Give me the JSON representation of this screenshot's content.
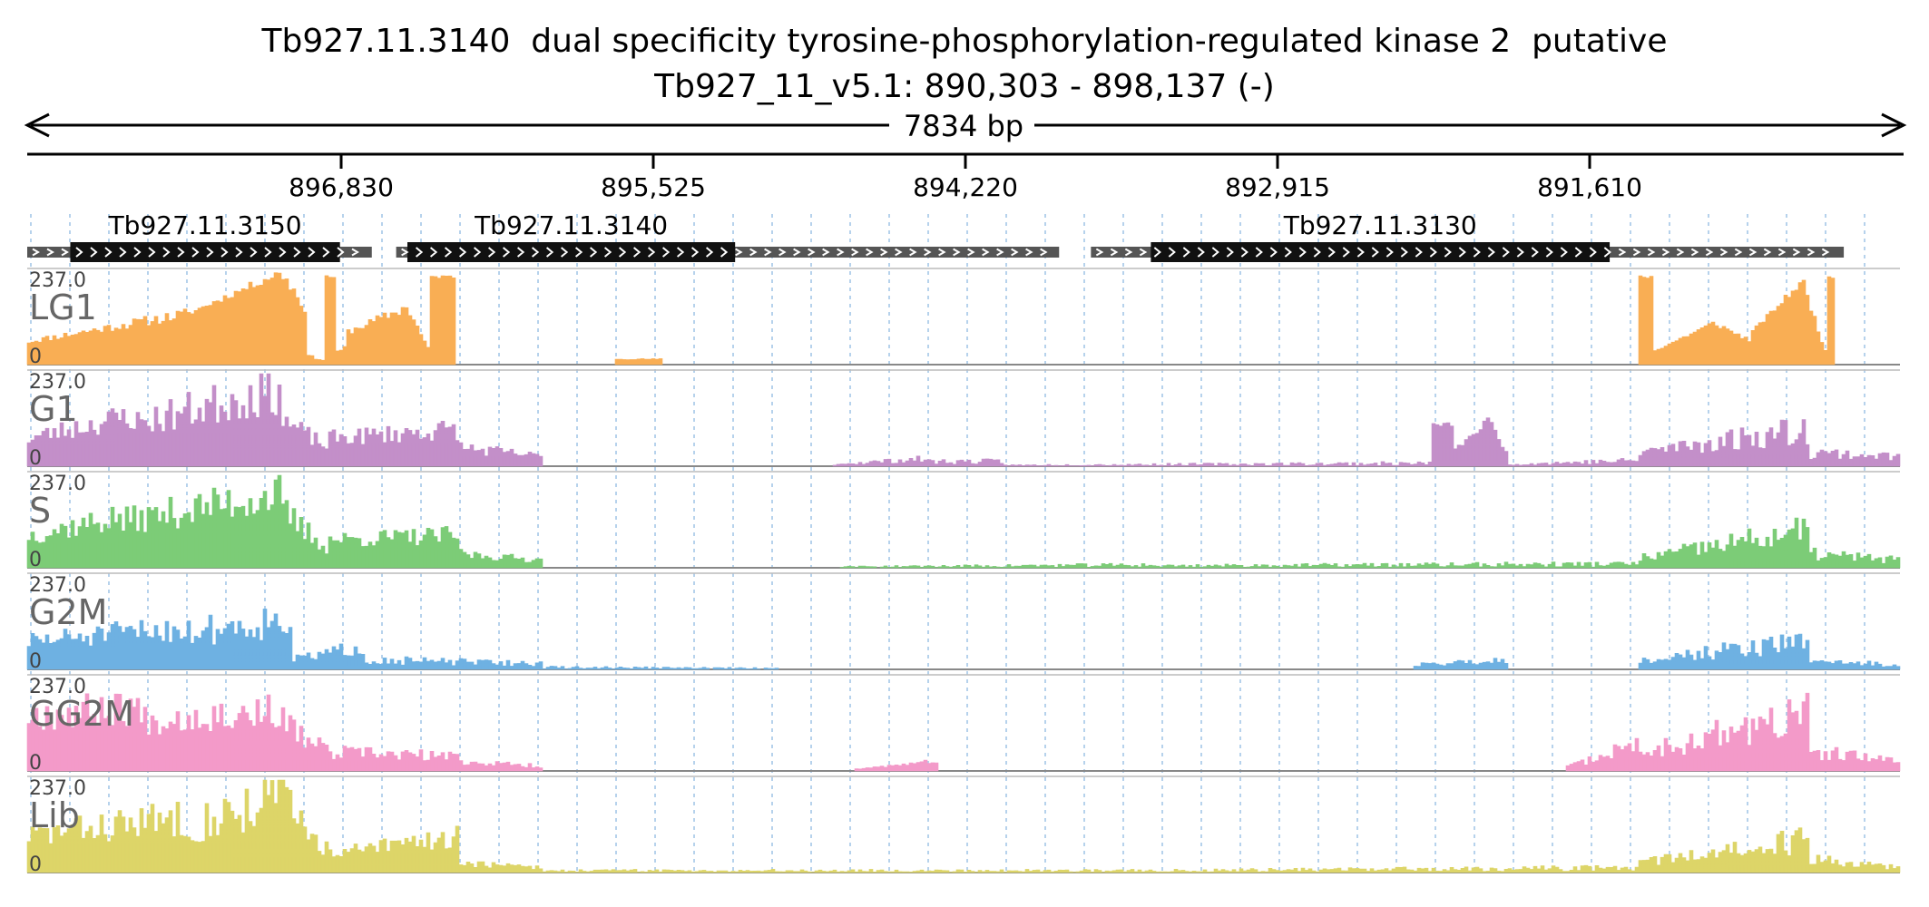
{
  "title_line1": "Tb927.11.3140  dual specificity tyrosine-phosphorylation-regulated kinase 2  putative",
  "title_line2": "Tb927_11_v5.1: 890,303 - 898,137 (-)",
  "span_label": "7834 bp",
  "ticks": [
    "896,830",
    "895,525",
    "894,220",
    "892,915",
    "891,610"
  ],
  "genes": [
    {
      "name": "Tb927.11.3150",
      "utr_start": 0,
      "cds_start": 0.023,
      "cds_end": 0.167,
      "utr_end": 0.184
    },
    {
      "name": "Tb927.11.3140",
      "utr_start": 0.197,
      "cds_start": 0.203,
      "cds_end": 0.378,
      "utr_end": 0.551
    },
    {
      "name": "Tb927.11.3130",
      "utr_start": 0.568,
      "cds_start": 0.6,
      "cds_end": 0.845,
      "utr_end": 0.97
    }
  ],
  "tracks": [
    {
      "name": "LG1",
      "max": "237.0",
      "min": "0",
      "color": "#f9ae54",
      "seed": 11,
      "profile": [
        {
          "s": 0,
          "e": 0.085,
          "a": 0.25,
          "b": 0.55,
          "n": 0.12
        },
        {
          "s": 0.085,
          "e": 0.135,
          "a": 0.55,
          "b": 1.0,
          "n": 0.05
        },
        {
          "s": 0.135,
          "e": 0.148,
          "a": 1.0,
          "b": 0.6,
          "n": 0.1
        },
        {
          "s": 0.148,
          "e": 0.157,
          "a": 0.1,
          "b": 0.05,
          "n": 0.2
        },
        {
          "s": 0.157,
          "e": 0.163,
          "a": 0.95,
          "b": 0.95,
          "n": 0.02
        },
        {
          "s": 0.163,
          "e": 0.17,
          "a": 0.1,
          "b": 0.2,
          "n": 0.2
        },
        {
          "s": 0.17,
          "e": 0.2,
          "a": 0.35,
          "b": 0.6,
          "n": 0.1
        },
        {
          "s": 0.2,
          "e": 0.215,
          "a": 0.7,
          "b": 0.1,
          "n": 0.1
        },
        {
          "s": 0.215,
          "e": 0.228,
          "a": 0.95,
          "b": 0.95,
          "n": 0.02
        },
        {
          "s": 0.313,
          "e": 0.338,
          "a": 0.06,
          "b": 0.06,
          "n": 0.1
        },
        {
          "s": 0.86,
          "e": 0.868,
          "a": 0.95,
          "b": 0.95,
          "n": 0.02
        },
        {
          "s": 0.868,
          "e": 0.9,
          "a": 0.15,
          "b": 0.45,
          "n": 0.08
        },
        {
          "s": 0.9,
          "e": 0.92,
          "a": 0.45,
          "b": 0.25,
          "n": 0.08
        },
        {
          "s": 0.92,
          "e": 0.947,
          "a": 0.35,
          "b": 0.9,
          "n": 0.05
        },
        {
          "s": 0.947,
          "e": 0.96,
          "a": 0.9,
          "b": 0.1,
          "n": 0.08
        },
        {
          "s": 0.96,
          "e": 0.965,
          "a": 0.95,
          "b": 0.95,
          "n": 0.02
        }
      ]
    },
    {
      "name": "G1",
      "max": "237.0",
      "min": "0",
      "color": "#c38fc9",
      "seed": 23,
      "profile": [
        {
          "s": 0,
          "e": 0.055,
          "a": 0.3,
          "b": 0.55,
          "n": 0.3
        },
        {
          "s": 0.055,
          "e": 0.135,
          "a": 0.45,
          "b": 0.85,
          "n": 0.35
        },
        {
          "s": 0.135,
          "e": 0.16,
          "a": 0.5,
          "b": 0.2,
          "n": 0.3
        },
        {
          "s": 0.16,
          "e": 0.23,
          "a": 0.3,
          "b": 0.4,
          "n": 0.3
        },
        {
          "s": 0.23,
          "e": 0.275,
          "a": 0.2,
          "b": 0.1,
          "n": 0.4
        },
        {
          "s": 0.43,
          "e": 0.48,
          "a": 0.02,
          "b": 0.08,
          "n": 0.5
        },
        {
          "s": 0.48,
          "e": 0.52,
          "a": 0.05,
          "b": 0.05,
          "n": 0.6
        },
        {
          "s": 0.52,
          "e": 0.75,
          "a": 0.01,
          "b": 0.03,
          "n": 0.8
        },
        {
          "s": 0.75,
          "e": 0.76,
          "a": 0.45,
          "b": 0.45,
          "n": 0.05
        },
        {
          "s": 0.76,
          "e": 0.78,
          "a": 0.15,
          "b": 0.5,
          "n": 0.1
        },
        {
          "s": 0.78,
          "e": 0.79,
          "a": 0.5,
          "b": 0.1,
          "n": 0.1
        },
        {
          "s": 0.79,
          "e": 0.86,
          "a": 0.02,
          "b": 0.06,
          "n": 0.6
        },
        {
          "s": 0.86,
          "e": 0.95,
          "a": 0.15,
          "b": 0.4,
          "n": 0.45
        },
        {
          "s": 0.95,
          "e": 1.0,
          "a": 0.15,
          "b": 0.1,
          "n": 0.5
        }
      ]
    },
    {
      "name": "S",
      "max": "237.0",
      "min": "0",
      "color": "#7ccc77",
      "seed": 37,
      "profile": [
        {
          "s": 0,
          "e": 0.05,
          "a": 0.35,
          "b": 0.55,
          "n": 0.3
        },
        {
          "s": 0.05,
          "e": 0.135,
          "a": 0.5,
          "b": 0.8,
          "n": 0.3
        },
        {
          "s": 0.135,
          "e": 0.16,
          "a": 0.6,
          "b": 0.2,
          "n": 0.35
        },
        {
          "s": 0.16,
          "e": 0.23,
          "a": 0.3,
          "b": 0.35,
          "n": 0.3
        },
        {
          "s": 0.23,
          "e": 0.275,
          "a": 0.15,
          "b": 0.08,
          "n": 0.4
        },
        {
          "s": 0.43,
          "e": 0.6,
          "a": 0.01,
          "b": 0.03,
          "n": 0.8
        },
        {
          "s": 0.6,
          "e": 0.86,
          "a": 0.02,
          "b": 0.04,
          "n": 0.8
        },
        {
          "s": 0.86,
          "e": 0.95,
          "a": 0.1,
          "b": 0.4,
          "n": 0.45
        },
        {
          "s": 0.95,
          "e": 1.0,
          "a": 0.15,
          "b": 0.08,
          "n": 0.5
        }
      ]
    },
    {
      "name": "G2M",
      "max": "237.0",
      "min": "0",
      "color": "#6eb1e2",
      "seed": 51,
      "profile": [
        {
          "s": 0,
          "e": 0.085,
          "a": 0.3,
          "b": 0.45,
          "n": 0.35
        },
        {
          "s": 0.085,
          "e": 0.14,
          "a": 0.4,
          "b": 0.55,
          "n": 0.4
        },
        {
          "s": 0.14,
          "e": 0.18,
          "a": 0.1,
          "b": 0.25,
          "n": 0.4
        },
        {
          "s": 0.18,
          "e": 0.275,
          "a": 0.1,
          "b": 0.06,
          "n": 0.5
        },
        {
          "s": 0.275,
          "e": 0.4,
          "a": 0.02,
          "b": 0.01,
          "n": 0.8
        },
        {
          "s": 0.74,
          "e": 0.79,
          "a": 0.05,
          "b": 0.1,
          "n": 0.4
        },
        {
          "s": 0.86,
          "e": 0.95,
          "a": 0.1,
          "b": 0.3,
          "n": 0.45
        },
        {
          "s": 0.95,
          "e": 1.0,
          "a": 0.1,
          "b": 0.04,
          "n": 0.5
        }
      ]
    },
    {
      "name": "GG2M",
      "max": "237.0",
      "min": "0",
      "color": "#f39ac9",
      "seed": 67,
      "profile": [
        {
          "s": 0,
          "e": 0.06,
          "a": 0.6,
          "b": 0.7,
          "n": 0.3
        },
        {
          "s": 0.06,
          "e": 0.135,
          "a": 0.55,
          "b": 0.65,
          "n": 0.3
        },
        {
          "s": 0.135,
          "e": 0.165,
          "a": 0.5,
          "b": 0.15,
          "n": 0.4
        },
        {
          "s": 0.165,
          "e": 0.23,
          "a": 0.2,
          "b": 0.15,
          "n": 0.4
        },
        {
          "s": 0.23,
          "e": 0.275,
          "a": 0.1,
          "b": 0.05,
          "n": 0.4
        },
        {
          "s": 0.44,
          "e": 0.475,
          "a": 0.02,
          "b": 0.08,
          "n": 0.2
        },
        {
          "s": 0.475,
          "e": 0.485,
          "a": 0.1,
          "b": 0.1,
          "n": 0.2
        },
        {
          "s": 0.82,
          "e": 0.86,
          "a": 0.03,
          "b": 0.3,
          "n": 0.4
        },
        {
          "s": 0.86,
          "e": 0.95,
          "a": 0.2,
          "b": 0.6,
          "n": 0.45
        },
        {
          "s": 0.95,
          "e": 1.0,
          "a": 0.2,
          "b": 0.1,
          "n": 0.5
        }
      ]
    },
    {
      "name": "Lib",
      "max": "237.0",
      "min": "0",
      "color": "#ddd568",
      "seed": 83,
      "profile": [
        {
          "s": 0,
          "e": 0.085,
          "a": 0.4,
          "b": 0.6,
          "n": 0.35
        },
        {
          "s": 0.085,
          "e": 0.14,
          "a": 0.5,
          "b": 0.85,
          "n": 0.4
        },
        {
          "s": 0.14,
          "e": 0.165,
          "a": 0.6,
          "b": 0.15,
          "n": 0.4
        },
        {
          "s": 0.165,
          "e": 0.23,
          "a": 0.2,
          "b": 0.4,
          "n": 0.4
        },
        {
          "s": 0.23,
          "e": 0.275,
          "a": 0.1,
          "b": 0.05,
          "n": 0.4
        },
        {
          "s": 0.275,
          "e": 0.6,
          "a": 0.02,
          "b": 0.02,
          "n": 0.8
        },
        {
          "s": 0.6,
          "e": 0.86,
          "a": 0.02,
          "b": 0.05,
          "n": 0.7
        },
        {
          "s": 0.86,
          "e": 0.95,
          "a": 0.1,
          "b": 0.35,
          "n": 0.45
        },
        {
          "s": 0.95,
          "e": 1.0,
          "a": 0.15,
          "b": 0.05,
          "n": 0.5
        }
      ]
    }
  ]
}
